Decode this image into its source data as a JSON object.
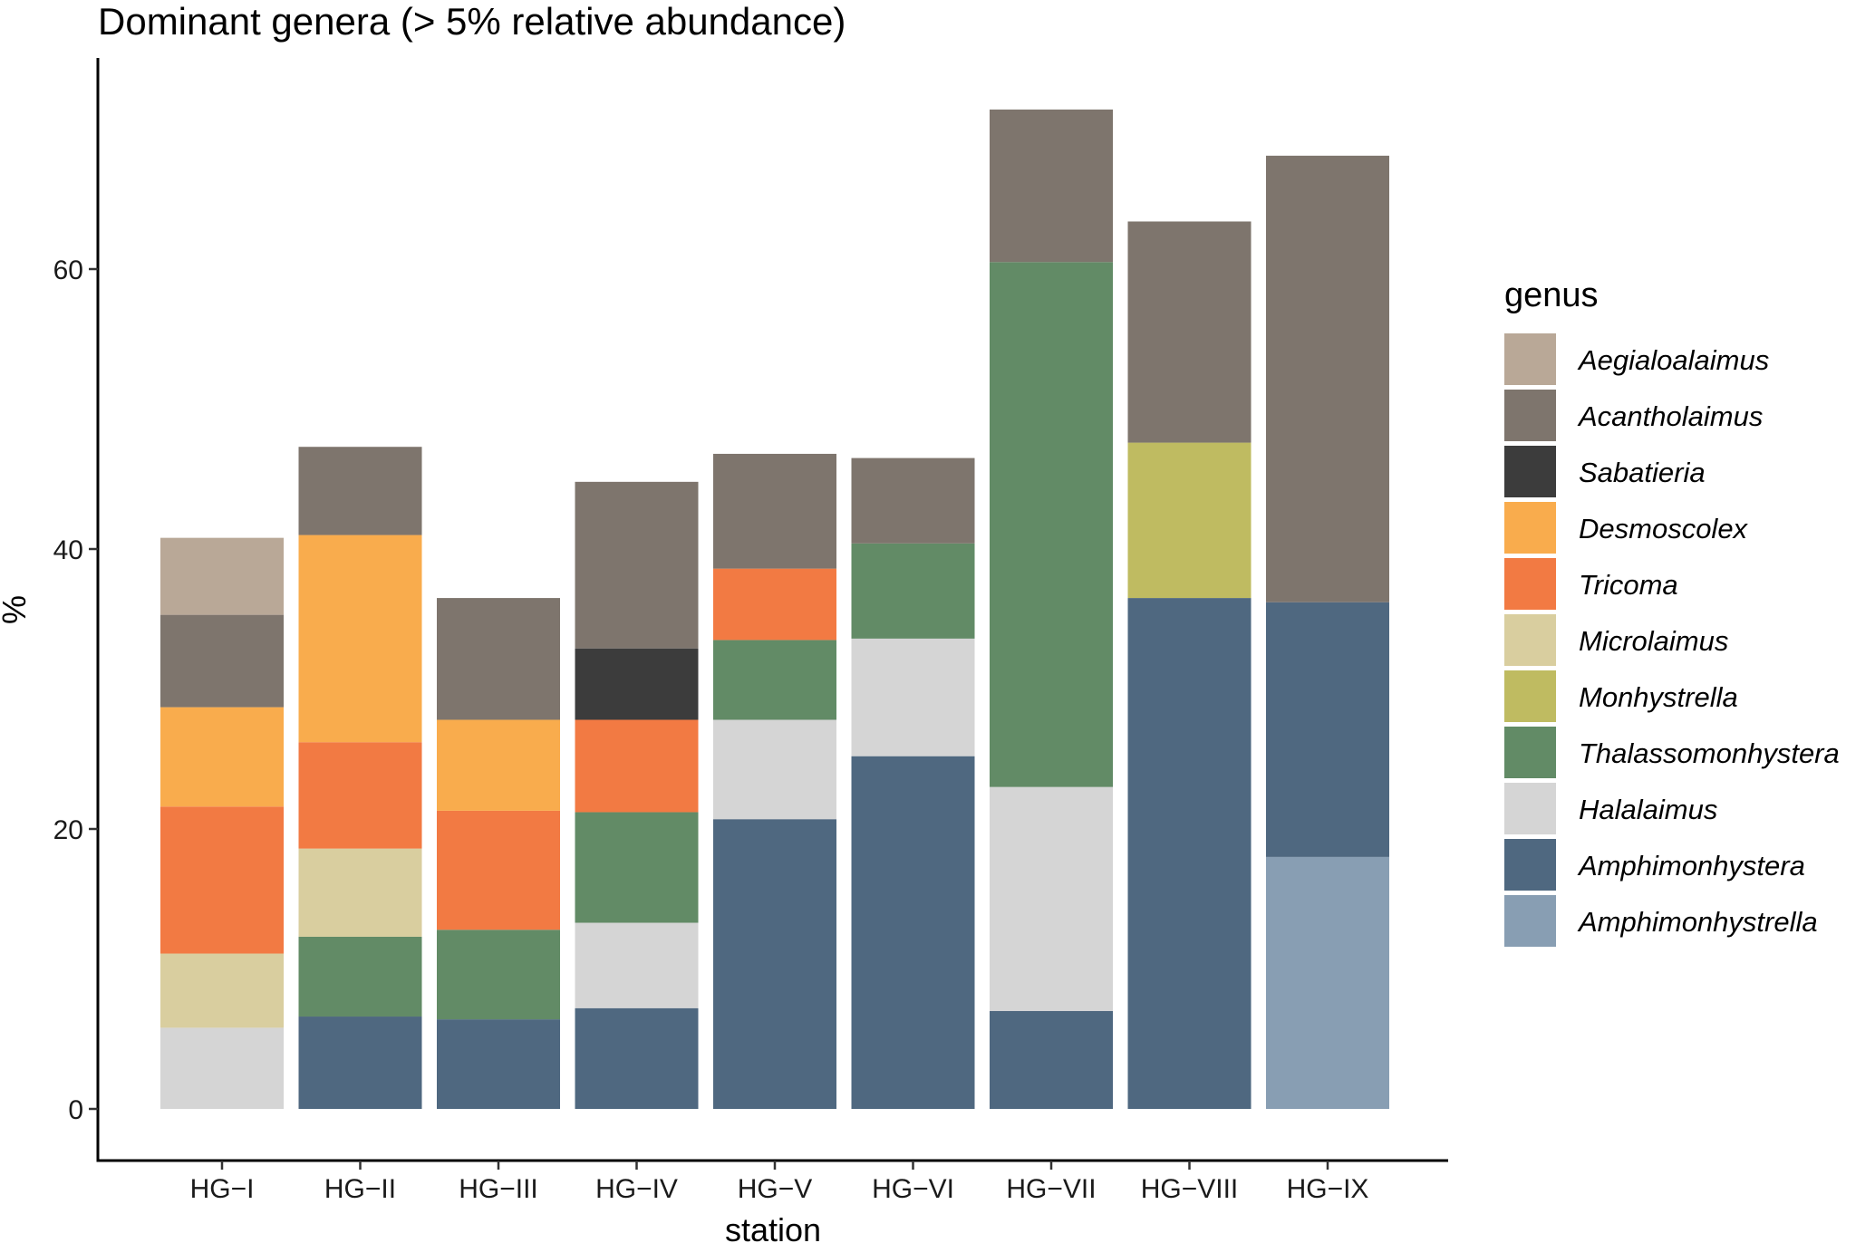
{
  "chart_data": {
    "type": "bar",
    "stacked": true,
    "title": "Dominant genera (> 5% relative abundance)",
    "xlabel": "station",
    "ylabel": "%",
    "ylim": [
      0,
      74
    ],
    "yticks": [
      0,
      20,
      40,
      60
    ],
    "categories": [
      "HG−I",
      "HG−II",
      "HG−III",
      "HG−IV",
      "HG−V",
      "HG−VI",
      "HG−VII",
      "HG−VIII",
      "HG−IX"
    ],
    "legend_title": "genus",
    "legend_position": "right",
    "series": [
      {
        "name": "Aegialoalaimus",
        "color": "#B9A897",
        "values": [
          5.5,
          0,
          0,
          0,
          0,
          0,
          0,
          0,
          0
        ]
      },
      {
        "name": "Acantholaimus",
        "color": "#7E756D",
        "values": [
          6.6,
          6.3,
          8.7,
          11.9,
          8.2,
          6.1,
          10.9,
          15.8,
          31.9
        ]
      },
      {
        "name": "Sabatieria",
        "color": "#3C3C3C",
        "values": [
          0,
          0,
          0,
          5.1,
          0,
          0,
          0,
          0,
          0
        ]
      },
      {
        "name": "Desmoscolex",
        "color": "#F9AC4D",
        "values": [
          7.1,
          14.8,
          6.5,
          0,
          0,
          0,
          0,
          0,
          0
        ]
      },
      {
        "name": "Tricoma",
        "color": "#F27A43",
        "values": [
          10.5,
          7.6,
          8.5,
          6.6,
          5.1,
          0,
          0,
          0,
          0
        ]
      },
      {
        "name": "Microlaimus",
        "color": "#D9CE9F",
        "values": [
          5.3,
          6.3,
          0,
          0,
          0,
          0,
          0,
          0,
          0
        ]
      },
      {
        "name": "Monhystrella",
        "color": "#BFBB61",
        "values": [
          0,
          0,
          0,
          0,
          0,
          0,
          0,
          11.1,
          0
        ]
      },
      {
        "name": "Thalassomonhystera",
        "color": "#628B66",
        "values": [
          0,
          5.7,
          6.4,
          7.9,
          5.7,
          6.8,
          37.5,
          0,
          0
        ]
      },
      {
        "name": "Halalaimus",
        "color": "#D5D5D5",
        "values": [
          5.8,
          0,
          0,
          6.1,
          7.1,
          8.4,
          16.0,
          0,
          0
        ]
      },
      {
        "name": "Amphimonhystera",
        "color": "#4F6880",
        "values": [
          0,
          6.6,
          6.4,
          7.2,
          20.7,
          25.2,
          7.0,
          36.5,
          18.2
        ]
      },
      {
        "name": "Amphimonhystrella",
        "color": "#889EB3",
        "values": [
          0,
          0,
          0,
          0,
          0,
          0,
          0,
          0,
          18.0
        ]
      }
    ]
  }
}
